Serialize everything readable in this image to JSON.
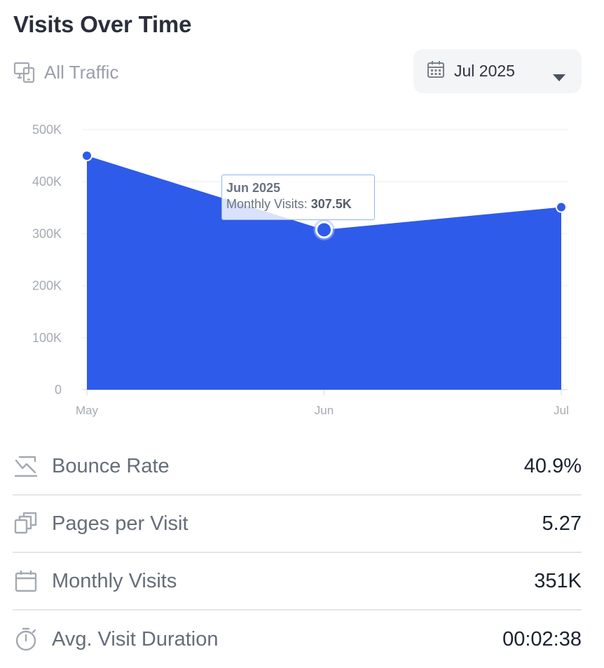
{
  "header": {
    "title": "Visits Over Time",
    "traffic_label": "All Traffic",
    "date_selector": "Jul 2025"
  },
  "chart_data": {
    "type": "area",
    "title": "",
    "xlabel": "",
    "ylabel": "",
    "categories": [
      "May",
      "Jun",
      "Jul"
    ],
    "values": [
      450000,
      307500,
      351000
    ],
    "ylim": [
      0,
      500000
    ],
    "yticks": [
      0,
      100000,
      200000,
      300000,
      400000,
      500000
    ],
    "ytick_labels": [
      "0",
      "100K",
      "200K",
      "300K",
      "400K",
      "500K"
    ],
    "grid": true,
    "fill_color": "#2e5bea",
    "tooltip": {
      "title": "Jun 2025",
      "label": "Monthly Visits:",
      "value": "307.5K",
      "index": 1
    }
  },
  "stats": [
    {
      "icon": "trend-down-icon",
      "label": "Bounce Rate",
      "value": "40.9%"
    },
    {
      "icon": "pages-icon",
      "label": "Pages per Visit",
      "value": "5.27"
    },
    {
      "icon": "calendar-icon",
      "label": "Monthly Visits",
      "value": "351K"
    },
    {
      "icon": "stopwatch-icon",
      "label": "Avg. Visit Duration",
      "value": "00:02:38"
    }
  ]
}
